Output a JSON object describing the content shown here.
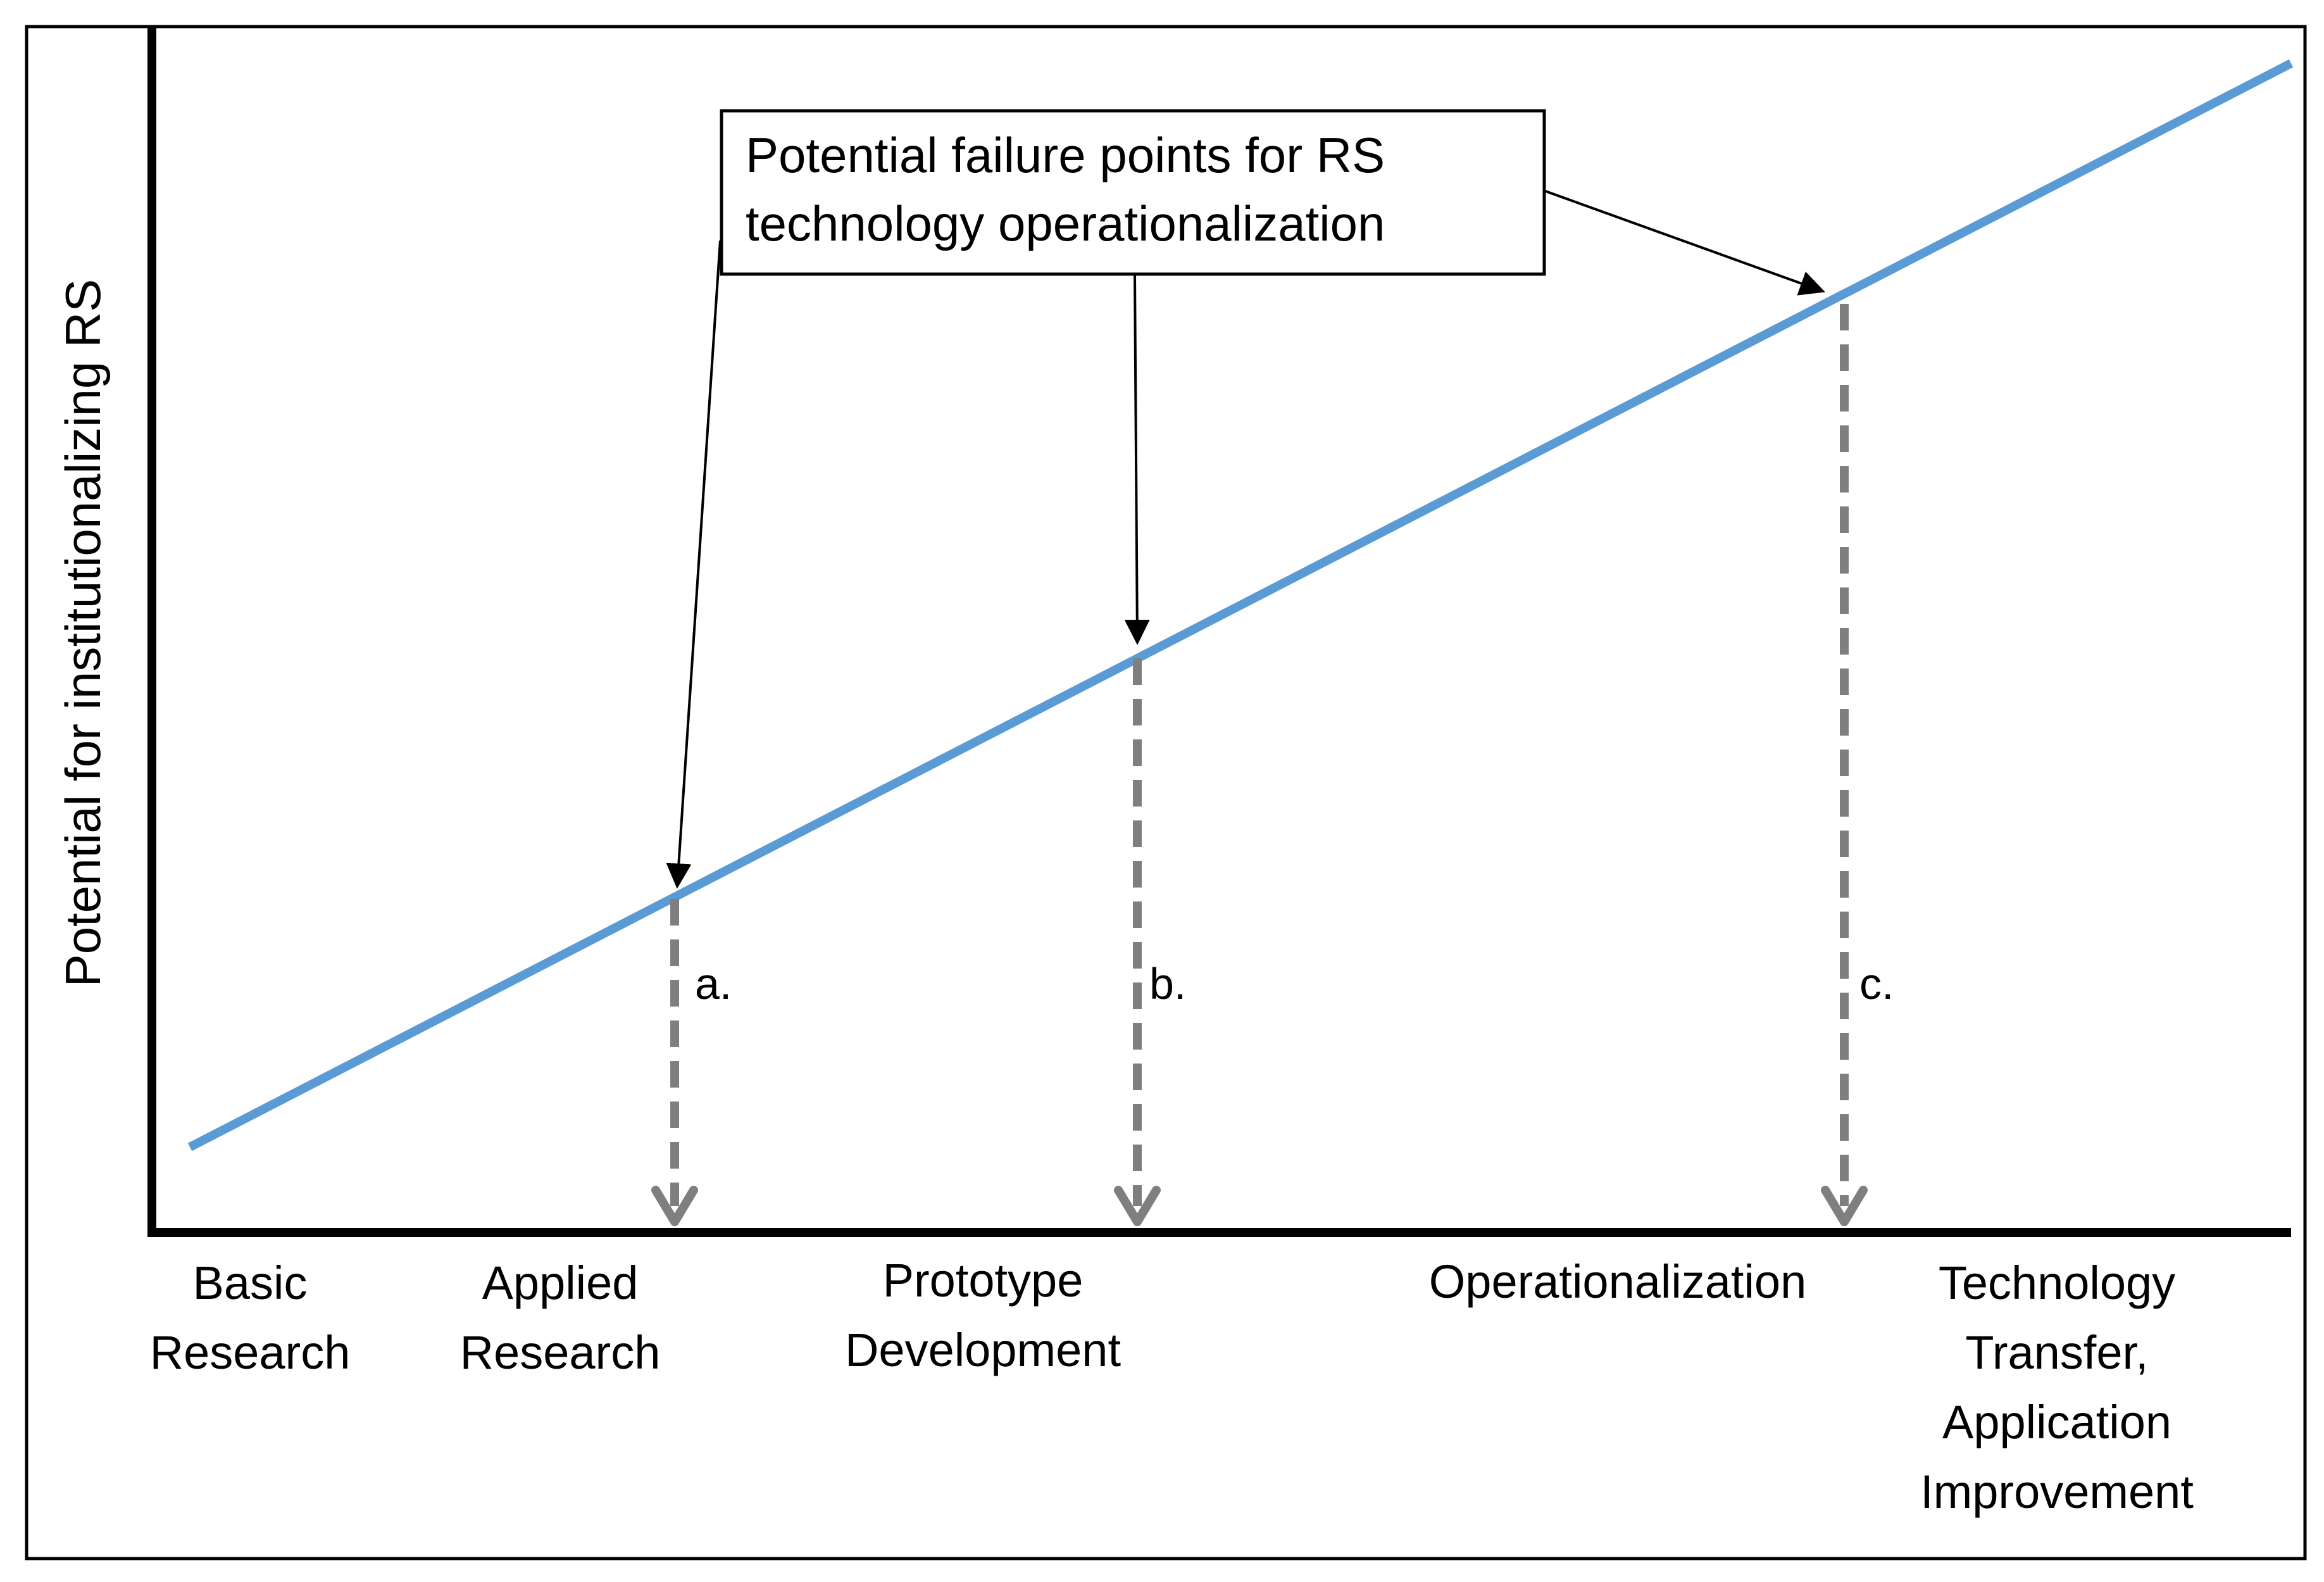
{
  "y_axis_label": "Potential for institutionalizing RS",
  "stages": [
    {
      "lines": [
        "Basic",
        "Research"
      ]
    },
    {
      "lines": [
        "Applied",
        "Research"
      ]
    },
    {
      "lines": [
        "Prototype",
        "Development"
      ]
    },
    {
      "lines": [
        "Operationalization"
      ]
    },
    {
      "lines": [
        "Technology",
        "Transfer,",
        "Application",
        "Improvement"
      ]
    }
  ],
  "callout": {
    "lines": [
      "Potential failure points for  RS",
      "technology operationalization"
    ]
  },
  "failure_points": [
    {
      "label": "a."
    },
    {
      "label": "b."
    },
    {
      "label": "c."
    }
  ],
  "colors": {
    "trend_line": "#5b9bd5",
    "dashed_drop": "#7f7f7f",
    "axes": "#000000",
    "frame": "#000000"
  }
}
